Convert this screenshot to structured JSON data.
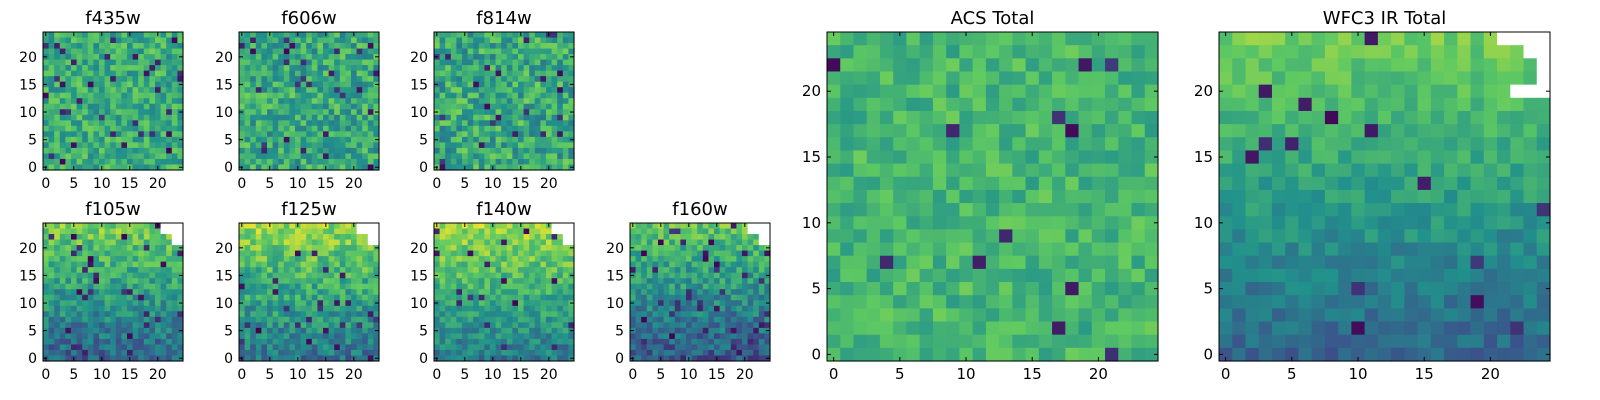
{
  "chart_data": {
    "type": "heatmap",
    "colormap": "viridis",
    "colormap_stops": [
      "#440154",
      "#3b528b",
      "#21918c",
      "#5ec962",
      "#fde725"
    ],
    "panels": [
      {
        "id": "f435w",
        "title": "f435w",
        "grid_size": 25,
        "x_ticks": [
          "0",
          "5",
          "10",
          "15",
          "20"
        ],
        "y_ticks": [
          "0",
          "5",
          "10",
          "15",
          "20"
        ],
        "mean_level": 0.62,
        "variation": 0.17,
        "trend": "flat",
        "dark_fraction": 0.04
      },
      {
        "id": "f606w",
        "title": "f606w",
        "grid_size": 25,
        "x_ticks": [
          "0",
          "5",
          "10",
          "15",
          "20"
        ],
        "y_ticks": [
          "0",
          "5",
          "10",
          "15",
          "20"
        ],
        "mean_level": 0.6,
        "variation": 0.19,
        "trend": "flat",
        "dark_fraction": 0.05
      },
      {
        "id": "f814w",
        "title": "f814w",
        "grid_size": 25,
        "x_ticks": [
          "0",
          "5",
          "10",
          "15",
          "20"
        ],
        "y_ticks": [
          "0",
          "5",
          "10",
          "15",
          "20"
        ],
        "mean_level": 0.6,
        "variation": 0.2,
        "trend": "flat",
        "dark_fraction": 0.05
      },
      {
        "id": "f105w",
        "title": "f105w",
        "grid_size": 25,
        "x_ticks": [
          "0",
          "5",
          "10",
          "15",
          "20"
        ],
        "y_ticks": [
          "0",
          "5",
          "10",
          "15",
          "20"
        ],
        "mean_level": 0.55,
        "variation": 0.15,
        "trend": "top_bright",
        "dark_fraction": 0.04,
        "masked_corner": "top-right"
      },
      {
        "id": "f125w",
        "title": "f125w",
        "grid_size": 25,
        "x_ticks": [
          "0",
          "5",
          "10",
          "15",
          "20"
        ],
        "y_ticks": [
          "0",
          "5",
          "10",
          "15",
          "20"
        ],
        "mean_level": 0.6,
        "variation": 0.16,
        "trend": "top_bright",
        "dark_fraction": 0.04,
        "masked_corner": "top-right"
      },
      {
        "id": "f140w",
        "title": "f140w",
        "grid_size": 25,
        "x_ticks": [
          "0",
          "5",
          "10",
          "15",
          "20"
        ],
        "y_ticks": [
          "0",
          "5",
          "10",
          "15",
          "20"
        ],
        "mean_level": 0.63,
        "variation": 0.14,
        "trend": "top_bright",
        "dark_fraction": 0.03,
        "masked_corner": "top-right"
      },
      {
        "id": "f160w",
        "title": "f160w",
        "grid_size": 25,
        "x_ticks": [
          "0",
          "5",
          "10",
          "15",
          "20"
        ],
        "y_ticks": [
          "0",
          "5",
          "10",
          "15",
          "20"
        ],
        "mean_level": 0.5,
        "variation": 0.15,
        "trend": "top_bright",
        "dark_fraction": 0.05,
        "masked_corner": "top-right"
      },
      {
        "id": "acs_total",
        "title": "ACS Total",
        "grid_size": 25,
        "x_ticks": [
          "0",
          "5",
          "10",
          "15",
          "20"
        ],
        "y_ticks": [
          "0",
          "5",
          "10",
          "15",
          "20"
        ],
        "mean_level": 0.66,
        "variation": 0.12,
        "trend": "flat",
        "dark_fraction": 0.03
      },
      {
        "id": "wfc3_ir_total",
        "title": "WFC3 IR Total",
        "grid_size": 25,
        "x_ticks": [
          "0",
          "5",
          "10",
          "15",
          "20"
        ],
        "y_ticks": [
          "0",
          "5",
          "10",
          "15",
          "20"
        ],
        "mean_level": 0.55,
        "variation": 0.09,
        "trend": "top_bright",
        "dark_fraction": 0.02,
        "masked_corner": "top-right"
      }
    ]
  }
}
